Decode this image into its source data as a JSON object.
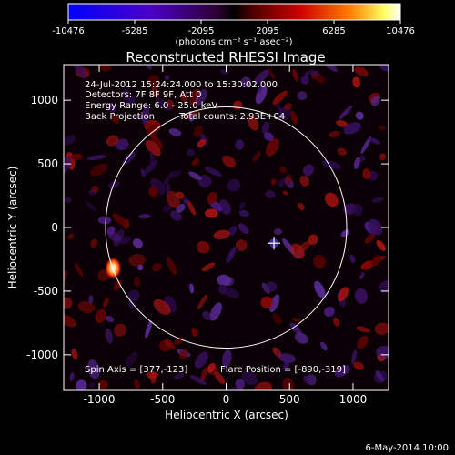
{
  "chart_data": {
    "type": "heatmap",
    "title": "Reconstructed RHESSI Image",
    "xlabel": "Heliocentric X (arcsec)",
    "ylabel": "Heliocentric Y (arcsec)",
    "xlim": [
      -1280,
      1280
    ],
    "ylim": [
      -1280,
      1280
    ],
    "x_ticks": [
      -1000,
      -500,
      0,
      500,
      1000
    ],
    "y_ticks": [
      -1000,
      -500,
      0,
      500,
      1000
    ],
    "colorbar": {
      "min": -10476,
      "max": 10476,
      "ticks": [
        -10476,
        -6285,
        -2095,
        2095,
        6285,
        10476
      ],
      "unit_label": "(photons cm⁻² s⁻¹ asec⁻²)"
    },
    "annotations": {
      "time_range": "24-Jul-2012 15:24:24.000 to 15:30:02.000",
      "detectors": "Detectors: 7F 8F 9F, Att 0",
      "energy": "Energy Range: 6.0 - 25.0 keV",
      "method": "Back Projection",
      "total_counts": "Total counts: 2.93E+04",
      "spin_axis": "Spin Axis = [377,-123]",
      "flare_position": "Flare Position = [-890,-319]"
    },
    "solar_limb_radius_arcsec": 950,
    "solar_limb_center": [
      0,
      0
    ],
    "spin_axis_marker": [
      377,
      -123
    ],
    "hot_source": {
      "x": -890,
      "y": -319,
      "label": "flare source"
    },
    "footer_date": "6-May-2014 10:00"
  }
}
